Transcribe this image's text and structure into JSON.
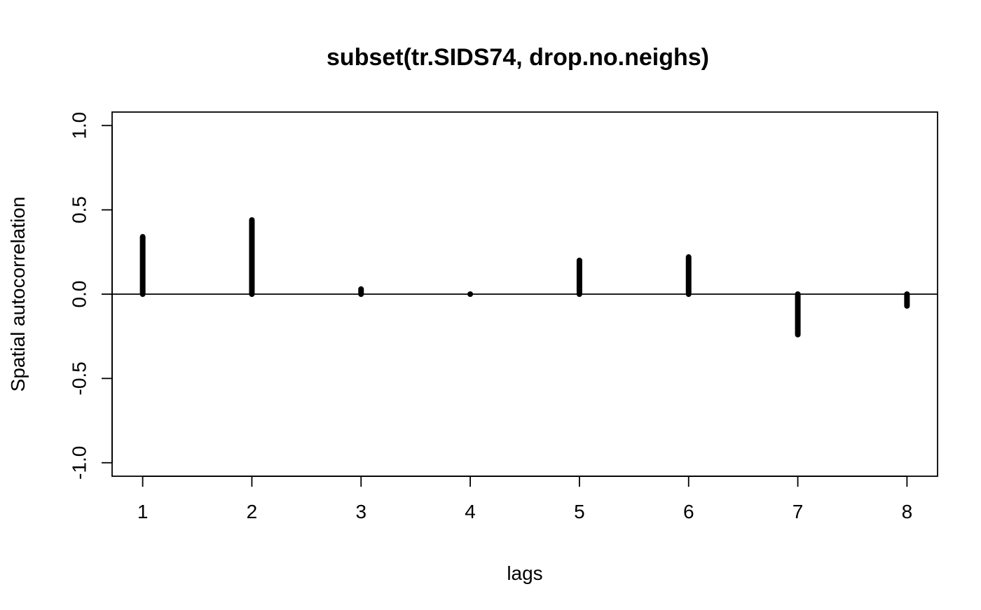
{
  "chart_data": {
    "type": "bar",
    "title": "subset(tr.SIDS74, drop.no.neighs)",
    "xlabel": "lags",
    "ylabel": "Spatial autocorrelation",
    "x": [
      1,
      2,
      3,
      4,
      5,
      6,
      7,
      8
    ],
    "values": [
      0.34,
      0.44,
      0.03,
      0.0,
      0.2,
      0.22,
      -0.24,
      -0.07
    ],
    "xticks": [
      "1",
      "2",
      "3",
      "4",
      "5",
      "6",
      "7",
      "8"
    ],
    "yticks": [
      "-1.0",
      "-0.5",
      "0.0",
      "0.5",
      "1.0"
    ],
    "ytick_values": [
      -1.0,
      -0.5,
      0.0,
      0.5,
      1.0
    ],
    "xlim": [
      0.72,
      8.28
    ],
    "ylim": [
      -1.08,
      1.08
    ],
    "grid": false,
    "zero_line": true,
    "colors": {
      "bars": "#000000",
      "axes": "#000000",
      "background": "#ffffff"
    }
  }
}
